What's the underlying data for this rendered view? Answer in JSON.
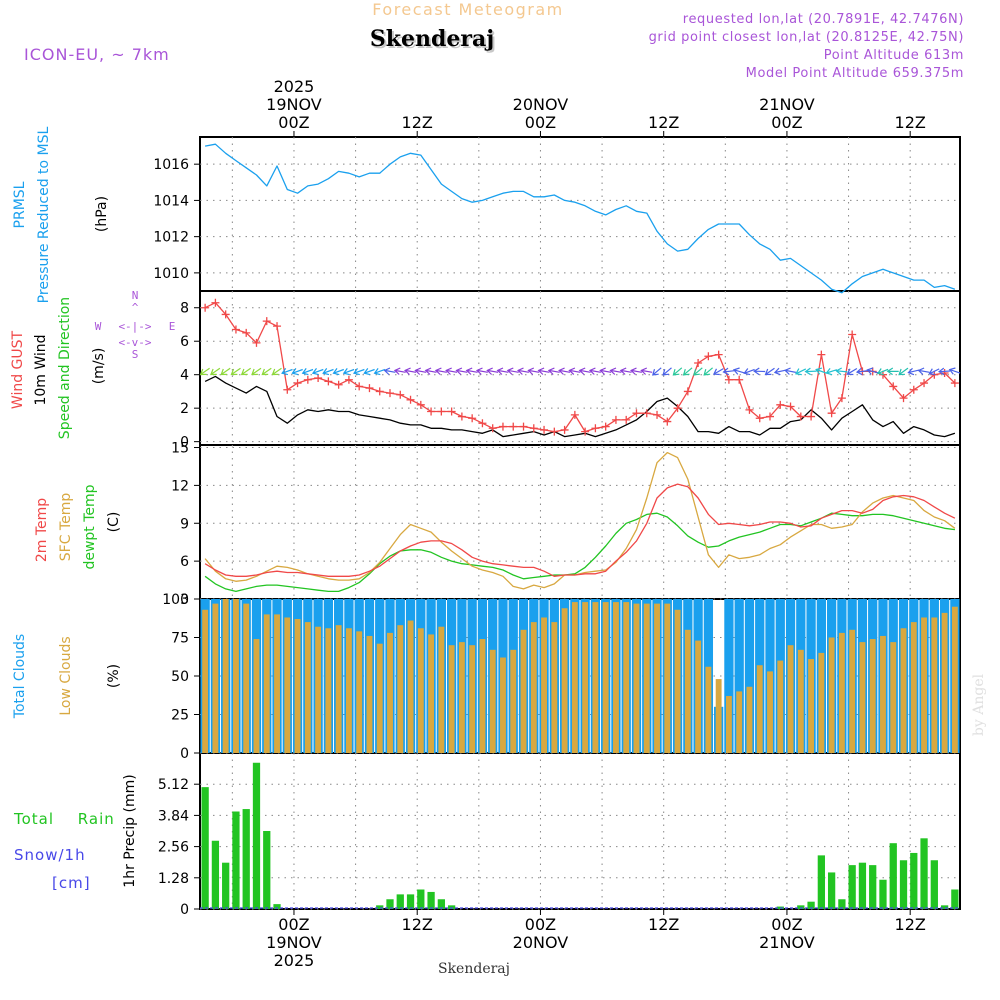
{
  "header": {
    "forecast_title": "Forecast Meteogram",
    "location": "Skenderaj",
    "model": "ICON-EU, ~ 7km",
    "requested": "requested lon,lat (20.7891E, 42.7476N)",
    "grid_point": "grid point closest lon,lat (20.8125E, 42.75N)",
    "point_altitude": "Point Altitude 613m",
    "model_altitude": "Model Point Altitude 659.375m",
    "watermark": "by Angel",
    "footer": "Skenderaj"
  },
  "colors": {
    "blue": "#1aa0ee",
    "red": "#f04848",
    "orange": "#d8a840",
    "green": "#22c422",
    "black": "#000000",
    "purple": "#a955d8",
    "snow": "#4848e8",
    "title_orange": "#f4c890",
    "grid": "#888888"
  },
  "time_axis": {
    "start": "18NOV 15Z",
    "step_hours": 1,
    "top_ticks": [
      {
        "hour": 9,
        "labels": [
          "2025",
          "19NOV",
          "00Z"
        ]
      },
      {
        "hour": 21,
        "labels": [
          "12Z"
        ]
      },
      {
        "hour": 33,
        "labels": [
          "20NOV",
          "00Z"
        ]
      },
      {
        "hour": 45,
        "labels": [
          "12Z"
        ]
      },
      {
        "hour": 57,
        "labels": [
          "21NOV",
          "00Z"
        ]
      },
      {
        "hour": 69,
        "labels": [
          "12Z"
        ]
      }
    ],
    "bottom_ticks": [
      {
        "hour": 9,
        "labels": [
          "00Z",
          "19NOV",
          "2025"
        ]
      },
      {
        "hour": 21,
        "labels": [
          "12Z"
        ]
      },
      {
        "hour": 33,
        "labels": [
          "00Z",
          "20NOV"
        ]
      },
      {
        "hour": 45,
        "labels": [
          "12Z"
        ]
      },
      {
        "hour": 57,
        "labels": [
          "00Z",
          "21NOV"
        ]
      },
      {
        "hour": 69,
        "labels": [
          "12Z"
        ]
      }
    ]
  },
  "panels": {
    "pressure": {
      "label1": "PRMSL",
      "label2": "Pressure Reduced to MSL",
      "unit": "(hPa)",
      "ticks": [
        "1010",
        "1012",
        "1014",
        "1016"
      ]
    },
    "wind": {
      "label1": "Wind GUST",
      "label2": "10m Wind",
      "label3": "Speed and Direction",
      "unit": "(m/s)",
      "ticks": [
        "0",
        "2",
        "4",
        "6",
        "8"
      ],
      "compass": {
        "n": "N",
        "s": "S",
        "e": "E",
        "w": "W",
        "row_top": "^",
        "row_mid": "<-|->",
        "row_bot": "<-v->"
      }
    },
    "temp": {
      "label1": "2m Temp",
      "label2": "SFC Temp",
      "label3": "dewpt Temp",
      "unit": "(C)",
      "ticks": [
        "3",
        "6",
        "9",
        "12",
        "15"
      ]
    },
    "clouds": {
      "label1": "Total Clouds",
      "label2": "Low Clouds",
      "unit": "(%)",
      "ticks": [
        "0",
        "25",
        "50",
        "75",
        "100"
      ]
    },
    "precip": {
      "label_rain": "Total Rain",
      "label_snow": "Snow/1h",
      "label_cm": "[cm]",
      "unit": "1hr Precip (mm)",
      "ticks": [
        "0",
        "1.28",
        "2.56",
        "3.84",
        "5.12"
      ]
    }
  },
  "chart_data": [
    {
      "type": "line",
      "title": "PRMSL Pressure Reduced to MSL",
      "ylabel": "hPa",
      "ylim": [
        1009,
        1017.5
      ],
      "x_start_hour": 0,
      "series": [
        {
          "name": "PRMSL",
          "values": [
            1017,
            1017.1,
            1016.6,
            1016.2,
            1015.8,
            1015.4,
            1014.8,
            1015.9,
            1014.6,
            1014.4,
            1014.8,
            1014.9,
            1015.2,
            1015.6,
            1015.5,
            1015.3,
            1015.5,
            1015.5,
            1016.0,
            1016.4,
            1016.6,
            1016.5,
            1015.7,
            1014.9,
            1014.5,
            1014.1,
            1013.9,
            1014.0,
            1014.2,
            1014.4,
            1014.5,
            1014.5,
            1014.2,
            1014.2,
            1014.3,
            1014.0,
            1013.9,
            1013.7,
            1013.4,
            1013.2,
            1013.5,
            1013.7,
            1013.4,
            1013.3,
            1012.3,
            1011.6,
            1011.2,
            1011.3,
            1011.9,
            1012.4,
            1012.7,
            1012.7,
            1012.7,
            1012.1,
            1011.6,
            1011.3,
            1010.7,
            1010.8,
            1010.4,
            1010.0,
            1009.6,
            1009.1,
            1008.9,
            1009.4,
            1009.8,
            1010.0,
            1010.2,
            1010.0,
            1009.8,
            1009.6,
            1009.6,
            1009.2,
            1009.3,
            1009.1
          ]
        }
      ]
    },
    {
      "type": "line",
      "title": "Wind GUST / 10m Wind Speed and Direction",
      "ylabel": "m/s",
      "ylim": [
        -0.2,
        9
      ],
      "x_start_hour": 0,
      "series": [
        {
          "name": "Wind GUST",
          "values": [
            8.0,
            8.3,
            7.6,
            6.7,
            6.5,
            5.9,
            7.2,
            6.9,
            3.1,
            3.5,
            3.7,
            3.8,
            3.6,
            3.4,
            3.7,
            3.3,
            3.2,
            3.0,
            2.9,
            2.8,
            2.5,
            2.2,
            1.8,
            1.8,
            1.8,
            1.5,
            1.4,
            1.1,
            0.8,
            0.9,
            0.9,
            0.9,
            0.8,
            0.7,
            0.6,
            0.7,
            1.6,
            0.6,
            0.8,
            0.9,
            1.3,
            1.3,
            1.7,
            1.7,
            1.6,
            1.2,
            2.0,
            3.0,
            4.7,
            5.1,
            5.2,
            3.7,
            3.7,
            1.9,
            1.4,
            1.5,
            2.2,
            2.1,
            1.5,
            1.5,
            5.2,
            1.7,
            2.6,
            6.4,
            4.2,
            4.2,
            4.0,
            3.3,
            2.6,
            3.1,
            3.5,
            4.0,
            4.1,
            3.5
          ]
        },
        {
          "name": "10m Wind",
          "values": [
            3.6,
            3.9,
            3.5,
            3.2,
            2.9,
            3.3,
            3.0,
            1.5,
            1.1,
            1.6,
            1.9,
            1.8,
            1.9,
            1.8,
            1.8,
            1.6,
            1.5,
            1.4,
            1.3,
            1.1,
            1.0,
            1.0,
            0.8,
            0.8,
            0.7,
            0.7,
            0.6,
            0.5,
            0.7,
            0.3,
            0.4,
            0.5,
            0.6,
            0.4,
            0.6,
            0.3,
            0.4,
            0.5,
            0.3,
            0.5,
            0.7,
            1.0,
            1.3,
            1.8,
            2.4,
            2.6,
            2.1,
            1.5,
            0.6,
            0.6,
            0.5,
            0.9,
            0.6,
            0.6,
            0.4,
            0.8,
            0.8,
            1.2,
            1.3,
            1.9,
            1.4,
            0.7,
            1.4,
            1.8,
            2.2,
            1.3,
            0.9,
            1.2,
            0.5,
            0.9,
            0.7,
            0.4,
            0.3,
            0.5
          ]
        }
      ]
    },
    {
      "type": "line",
      "title": "2m Temp / SFC Temp / dewpt Temp",
      "ylabel": "C",
      "ylim": [
        3,
        15.2
      ],
      "x_start_hour": 0,
      "series": [
        {
          "name": "2m Temp",
          "values": [
            5.8,
            5.3,
            4.9,
            4.8,
            4.8,
            4.9,
            5.1,
            5.2,
            5.1,
            5.1,
            5.0,
            4.9,
            4.8,
            4.8,
            4.8,
            4.9,
            5.2,
            5.6,
            6.2,
            6.8,
            7.2,
            7.5,
            7.6,
            7.6,
            7.4,
            6.9,
            6.3,
            6.0,
            5.8,
            5.7,
            5.6,
            5.5,
            5.5,
            5.2,
            4.8,
            4.9,
            4.9,
            5.0,
            5.0,
            5.2,
            6.0,
            6.7,
            7.6,
            9.0,
            11.0,
            11.8,
            12.1,
            11.9,
            11.0,
            9.7,
            8.9,
            9.0,
            8.9,
            8.8,
            8.9,
            9.1,
            9.1,
            9.0,
            8.7,
            8.8,
            9.4,
            9.7,
            10.0,
            10.0,
            9.8,
            10.1,
            10.8,
            11.1,
            11.2,
            11.1,
            10.8,
            10.3,
            9.8,
            9.4
          ]
        },
        {
          "name": "SFC Temp",
          "values": [
            6.2,
            5.2,
            4.6,
            4.4,
            4.5,
            4.8,
            5.2,
            5.6,
            5.5,
            5.3,
            5.0,
            4.8,
            4.6,
            4.5,
            4.5,
            4.6,
            5.1,
            5.9,
            7.0,
            8.1,
            8.9,
            8.6,
            8.3,
            7.5,
            6.8,
            6.2,
            5.6,
            5.3,
            5.1,
            4.8,
            4.0,
            3.8,
            4.1,
            3.9,
            4.2,
            4.9,
            4.9,
            5.1,
            5.2,
            5.3,
            5.9,
            7.0,
            8.5,
            11.0,
            13.8,
            14.6,
            14.2,
            12.5,
            9.5,
            6.5,
            5.5,
            6.5,
            6.2,
            6.3,
            6.5,
            7.0,
            7.3,
            7.9,
            8.4,
            8.9,
            8.9,
            8.6,
            8.7,
            8.9,
            9.9,
            10.6,
            11.0,
            11.2,
            11.0,
            10.8,
            10.0,
            9.5,
            9.2,
            8.6
          ]
        },
        {
          "name": "dewpt Temp",
          "values": [
            4.8,
            4.2,
            3.8,
            3.6,
            3.8,
            4.0,
            4.1,
            4.1,
            4.0,
            3.9,
            3.8,
            3.7,
            3.6,
            3.6,
            3.9,
            4.3,
            5.0,
            5.8,
            6.4,
            6.8,
            6.9,
            6.9,
            6.7,
            6.3,
            6.0,
            5.8,
            5.7,
            5.6,
            5.5,
            5.3,
            4.9,
            4.6,
            4.7,
            4.8,
            4.9,
            4.9,
            5.0,
            5.5,
            6.3,
            7.2,
            8.2,
            9.0,
            9.3,
            9.7,
            9.8,
            9.5,
            8.8,
            8.0,
            7.5,
            7.1,
            7.2,
            7.6,
            7.9,
            8.1,
            8.3,
            8.6,
            8.9,
            8.9,
            8.8,
            9.1,
            9.4,
            9.8,
            9.7,
            9.6,
            9.6,
            9.7,
            9.7,
            9.6,
            9.4,
            9.2,
            9.0,
            8.8,
            8.6,
            8.5
          ]
        }
      ]
    },
    {
      "type": "bar",
      "title": "Total Clouds / Low Clouds",
      "ylabel": "%",
      "ylim": [
        0,
        100
      ],
      "x_start_hour": 0,
      "series": [
        {
          "name": "Total Clouds",
          "values": [
            100,
            100,
            100,
            100,
            100,
            100,
            100,
            100,
            100,
            100,
            100,
            100,
            100,
            100,
            100,
            100,
            100,
            100,
            100,
            100,
            100,
            100,
            100,
            100,
            100,
            100,
            100,
            100,
            100,
            100,
            100,
            100,
            100,
            100,
            100,
            100,
            100,
            100,
            100,
            100,
            100,
            100,
            100,
            100,
            100,
            100,
            100,
            100,
            100,
            100,
            30,
            100,
            100,
            100,
            100,
            100,
            100,
            100,
            100,
            100,
            100,
            100,
            100,
            100,
            100,
            100,
            100,
            100,
            100,
            100,
            100,
            100,
            100,
            100
          ]
        },
        {
          "name": "Low Clouds",
          "values": [
            93,
            97,
            100,
            100,
            97,
            74,
            90,
            90,
            88,
            87,
            85,
            82,
            81,
            83,
            81,
            79,
            76,
            71,
            78,
            83,
            86,
            81,
            77,
            82,
            70,
            72,
            70,
            74,
            67,
            62,
            67,
            80,
            85,
            88,
            85,
            94,
            98,
            98,
            98,
            98,
            98,
            98,
            97,
            97,
            97,
            97,
            93,
            80,
            73,
            56,
            48,
            37,
            40,
            43,
            57,
            53,
            60,
            70,
            67,
            61,
            65,
            75,
            78,
            80,
            72,
            74,
            76,
            72,
            81,
            85,
            88,
            88,
            91,
            95
          ]
        }
      ]
    },
    {
      "type": "bar",
      "title": "1hr Precip (mm)",
      "ylabel": "mm",
      "ylim": [
        0,
        6.4
      ],
      "x_start_hour": 0,
      "series": [
        {
          "name": "Total Rain",
          "values": [
            5.0,
            2.8,
            1.9,
            4.0,
            4.1,
            6.0,
            3.2,
            0.2,
            0,
            0,
            0,
            0,
            0,
            0,
            0,
            0,
            0,
            0.15,
            0.4,
            0.6,
            0.6,
            0.8,
            0.7,
            0.4,
            0.15,
            0,
            0,
            0,
            0,
            0,
            0,
            0,
            0,
            0,
            0,
            0,
            0,
            0,
            0,
            0,
            0,
            0,
            0,
            0,
            0,
            0,
            0,
            0,
            0,
            0,
            0,
            0,
            0,
            0,
            0,
            0,
            0.1,
            0,
            0.15,
            0.3,
            2.2,
            1.5,
            0.4,
            1.8,
            1.9,
            1.8,
            1.2,
            2.7,
            2.0,
            2.3,
            2.9,
            2.0,
            0.15,
            0.8
          ]
        },
        {
          "name": "Snow/1h",
          "values": []
        }
      ]
    }
  ]
}
